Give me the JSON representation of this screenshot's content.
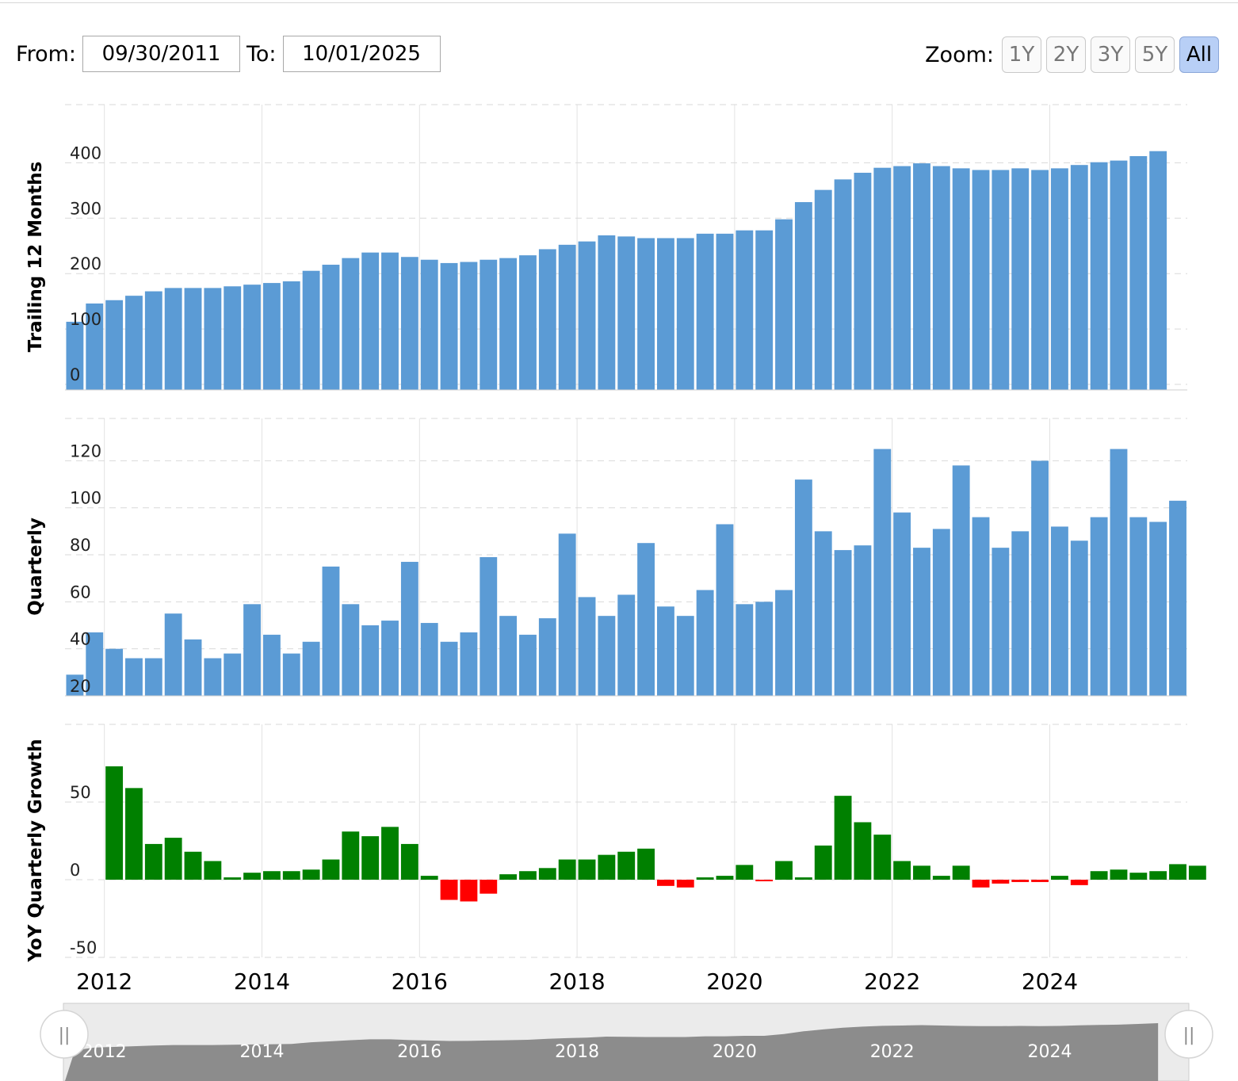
{
  "controls": {
    "from_label": "From:",
    "from_value": "09/30/2011",
    "to_label": "To:",
    "to_value": "10/01/2025",
    "zoom_label": "Zoom:",
    "zoom_options": [
      "1Y",
      "2Y",
      "3Y",
      "5Y",
      "All"
    ],
    "zoom_selected": "All"
  },
  "colors": {
    "bar": "#5b9bd5",
    "positive": "#008000",
    "negative": "#ff0000",
    "navigator_fill": "#8c8c8c"
  },
  "chart_data": [
    {
      "type": "bar",
      "ylabel": "Trailing 12 Months",
      "ylim": [
        -10,
        505
      ],
      "yticks": [
        0,
        100,
        200,
        300,
        400
      ],
      "grid": true,
      "x_start_quarter": "2011-Q3",
      "values": [
        113,
        146,
        152,
        160,
        168,
        174,
        174,
        174,
        177,
        180,
        183,
        186,
        205,
        216,
        228,
        238,
        238,
        230,
        225,
        219,
        221,
        225,
        228,
        233,
        244,
        252,
        258,
        269,
        267,
        264,
        264,
        264,
        272,
        272,
        278,
        278,
        298,
        329,
        351,
        370,
        382,
        391,
        394,
        399,
        394,
        390,
        387,
        387,
        390,
        387,
        390,
        396,
        401,
        404,
        412,
        421
      ]
    },
    {
      "type": "bar",
      "ylabel": "Quarterly",
      "ylim": [
        20,
        138
      ],
      "yticks": [
        20,
        40,
        60,
        80,
        100,
        120
      ],
      "grid": true,
      "x_start_quarter": "2011-Q3",
      "values": [
        29,
        47,
        40,
        36,
        36,
        55,
        44,
        36,
        38,
        59,
        46,
        38,
        43,
        75,
        59,
        50,
        52,
        77,
        51,
        43,
        47,
        79,
        54,
        46,
        53,
        89,
        62,
        54,
        63,
        85,
        58,
        54,
        65,
        93,
        59,
        60,
        65,
        112,
        90,
        82,
        84,
        125,
        98,
        83,
        91,
        118,
        96,
        83,
        90,
        120,
        92,
        86,
        96,
        125,
        96,
        94,
        103
      ]
    },
    {
      "type": "bar",
      "ylabel": "YoY Quarterly Growth",
      "ylim": [
        -50,
        100
      ],
      "yticks": [
        -50,
        0,
        50
      ],
      "grid": true,
      "x_start_quarter": "2012-Q1",
      "values": [
        73,
        59,
        23,
        27,
        18,
        12,
        1.5,
        4.5,
        5.5,
        5.5,
        6.5,
        13,
        31,
        28,
        34,
        23,
        2.5,
        -13,
        -14,
        -9,
        3.5,
        5.5,
        7.5,
        13,
        13,
        16,
        18,
        20,
        -4,
        -5,
        1.5,
        2.5,
        9.5,
        -0.5,
        12,
        1.5,
        22,
        54,
        37,
        29,
        12,
        9,
        2.5,
        9,
        -5,
        -2.5,
        -1.5,
        -1.5,
        2.5,
        -3.5,
        5.5,
        6.5,
        4.5,
        5.5,
        10,
        9
      ]
    }
  ],
  "x_axis": {
    "tick_labels": [
      "2012",
      "2014",
      "2016",
      "2018",
      "2020",
      "2022",
      "2024"
    ]
  },
  "navigator": {
    "tick_labels": [
      "2012",
      "2014",
      "2016",
      "2018",
      "2020",
      "2022",
      "2024"
    ],
    "handle_glyph": "||"
  }
}
